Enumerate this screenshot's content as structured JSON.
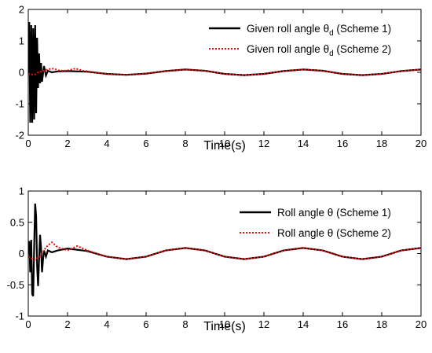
{
  "chart_data": [
    {
      "type": "line",
      "xlabel": "Time(s)",
      "ylabel": "",
      "xlim": [
        0,
        20
      ],
      "ylim": [
        -2,
        2
      ],
      "xticks": [
        0,
        2,
        4,
        6,
        8,
        10,
        12,
        14,
        16,
        18,
        20
      ],
      "yticks": [
        -2,
        -1,
        0,
        1,
        2
      ],
      "grid": false,
      "legend_position": "top-right",
      "series": [
        {
          "name": "Given roll angle θd (Scheme 1)",
          "legend_parts": [
            "Given roll angle ",
            "θ",
            "d",
            " (Scheme 1)"
          ],
          "color": "#000000",
          "style": "solid",
          "points": [
            [
              0,
              0
            ],
            [
              0.05,
              1.6
            ],
            [
              0.1,
              -1.6
            ],
            [
              0.15,
              1.5
            ],
            [
              0.2,
              -1.6
            ],
            [
              0.25,
              1.4
            ],
            [
              0.3,
              -1.5
            ],
            [
              0.35,
              1.5
            ],
            [
              0.4,
              -1.3
            ],
            [
              0.45,
              1.1
            ],
            [
              0.5,
              -0.5
            ],
            [
              0.55,
              0.6
            ],
            [
              0.6,
              -0.35
            ],
            [
              0.65,
              0.3
            ],
            [
              0.7,
              -0.3
            ],
            [
              0.8,
              0.2
            ],
            [
              0.9,
              -0.1
            ],
            [
              1.0,
              0.05
            ],
            [
              1.2,
              0.0
            ],
            [
              1.5,
              0.03
            ],
            [
              2.0,
              0.04
            ],
            [
              3.0,
              0.02
            ],
            [
              4.0,
              -0.05
            ],
            [
              5.0,
              -0.08
            ],
            [
              6.0,
              -0.04
            ],
            [
              7.0,
              0.04
            ],
            [
              8.0,
              0.09
            ],
            [
              9.0,
              0.05
            ],
            [
              10.0,
              -0.05
            ],
            [
              11.0,
              -0.09
            ],
            [
              12.0,
              -0.05
            ],
            [
              13.0,
              0.04
            ],
            [
              14.0,
              0.09
            ],
            [
              15.0,
              0.05
            ],
            [
              16.0,
              -0.05
            ],
            [
              17.0,
              -0.09
            ],
            [
              18.0,
              -0.05
            ],
            [
              19.0,
              0.04
            ],
            [
              20.0,
              0.09
            ]
          ]
        },
        {
          "name": "Given roll angle θd (Scheme 2)",
          "legend_parts": [
            "Given roll angle ",
            "θ",
            "d",
            " (Scheme 2)"
          ],
          "color": "#ff0000",
          "style": "dotted",
          "points": [
            [
              0,
              -0.05
            ],
            [
              0.3,
              -0.08
            ],
            [
              0.5,
              0.0
            ],
            [
              0.8,
              0.05
            ],
            [
              1.0,
              0.1
            ],
            [
              1.3,
              0.12
            ],
            [
              1.6,
              0.05
            ],
            [
              2.0,
              0.06
            ],
            [
              2.4,
              0.12
            ],
            [
              2.8,
              0.05
            ],
            [
              3.2,
              0.02
            ],
            [
              4.0,
              -0.06
            ],
            [
              5.0,
              -0.08
            ],
            [
              6.0,
              -0.04
            ],
            [
              7.0,
              0.04
            ],
            [
              8.0,
              0.09
            ],
            [
              9.0,
              0.05
            ],
            [
              10.0,
              -0.05
            ],
            [
              11.0,
              -0.09
            ],
            [
              12.0,
              -0.05
            ],
            [
              13.0,
              0.04
            ],
            [
              14.0,
              0.09
            ],
            [
              15.0,
              0.05
            ],
            [
              16.0,
              -0.05
            ],
            [
              17.0,
              -0.09
            ],
            [
              18.0,
              -0.05
            ],
            [
              19.0,
              0.04
            ],
            [
              20.0,
              0.09
            ]
          ]
        }
      ]
    },
    {
      "type": "line",
      "xlabel": "Time(s)",
      "ylabel": "",
      "xlim": [
        0,
        20
      ],
      "ylim": [
        -1,
        1
      ],
      "xticks": [
        0,
        2,
        4,
        6,
        8,
        10,
        12,
        14,
        16,
        18,
        20
      ],
      "yticks": [
        -1,
        -0.5,
        0,
        0.5,
        1
      ],
      "grid": false,
      "legend_position": "top-right",
      "series": [
        {
          "name": "Roll angle θ (Scheme 1)",
          "legend_parts": [
            "Roll angle ",
            "θ",
            "",
            " (Scheme 1)"
          ],
          "color": "#000000",
          "style": "solid",
          "points": [
            [
              0,
              0
            ],
            [
              0.05,
              0.2
            ],
            [
              0.1,
              -0.3
            ],
            [
              0.15,
              0.22
            ],
            [
              0.2,
              -0.65
            ],
            [
              0.25,
              -0.68
            ],
            [
              0.3,
              0.1
            ],
            [
              0.35,
              0.8
            ],
            [
              0.4,
              0.6
            ],
            [
              0.45,
              -0.2
            ],
            [
              0.5,
              -0.52
            ],
            [
              0.55,
              -0.1
            ],
            [
              0.6,
              0.3
            ],
            [
              0.65,
              0.1
            ],
            [
              0.7,
              -0.3
            ],
            [
              0.75,
              -0.1
            ],
            [
              0.8,
              0.05
            ],
            [
              0.9,
              -0.05
            ],
            [
              1.0,
              0.05
            ],
            [
              1.2,
              0.02
            ],
            [
              1.5,
              0.05
            ],
            [
              2.0,
              0.08
            ],
            [
              3.0,
              0.04
            ],
            [
              4.0,
              -0.05
            ],
            [
              5.0,
              -0.09
            ],
            [
              6.0,
              -0.05
            ],
            [
              7.0,
              0.05
            ],
            [
              8.0,
              0.09
            ],
            [
              9.0,
              0.05
            ],
            [
              10.0,
              -0.05
            ],
            [
              11.0,
              -0.09
            ],
            [
              12.0,
              -0.05
            ],
            [
              13.0,
              0.05
            ],
            [
              14.0,
              0.09
            ],
            [
              15.0,
              0.05
            ],
            [
              16.0,
              -0.05
            ],
            [
              17.0,
              -0.09
            ],
            [
              18.0,
              -0.05
            ],
            [
              19.0,
              0.05
            ],
            [
              20.0,
              0.09
            ]
          ]
        },
        {
          "name": "Roll angle θ (Scheme 2)",
          "legend_parts": [
            "Roll angle ",
            "θ",
            "",
            " (Scheme 2)"
          ],
          "color": "#ff0000",
          "style": "dotted",
          "points": [
            [
              0,
              -0.05
            ],
            [
              0.3,
              -0.1
            ],
            [
              0.6,
              -0.05
            ],
            [
              0.9,
              0.1
            ],
            [
              1.2,
              0.18
            ],
            [
              1.5,
              0.1
            ],
            [
              2.0,
              0.05
            ],
            [
              2.5,
              0.12
            ],
            [
              3.0,
              0.05
            ],
            [
              4.0,
              -0.05
            ],
            [
              5.0,
              -0.09
            ],
            [
              6.0,
              -0.05
            ],
            [
              7.0,
              0.05
            ],
            [
              8.0,
              0.09
            ],
            [
              9.0,
              0.05
            ],
            [
              10.0,
              -0.05
            ],
            [
              11.0,
              -0.09
            ],
            [
              12.0,
              -0.05
            ],
            [
              13.0,
              0.05
            ],
            [
              14.0,
              0.09
            ],
            [
              15.0,
              0.05
            ],
            [
              16.0,
              -0.05
            ],
            [
              17.0,
              -0.09
            ],
            [
              18.0,
              -0.05
            ],
            [
              19.0,
              0.05
            ],
            [
              20.0,
              0.09
            ]
          ]
        }
      ]
    }
  ]
}
